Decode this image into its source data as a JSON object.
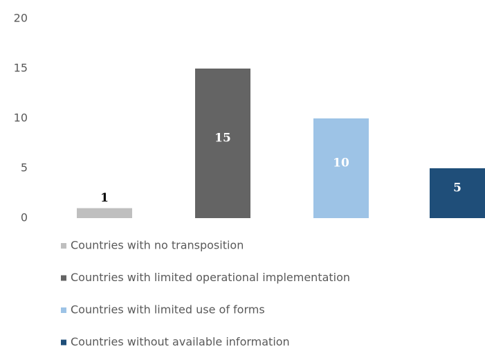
{
  "chart_data": {
    "type": "bar",
    "categories": [
      null
    ],
    "series": [
      {
        "name": "Countries with no transposition",
        "color": "#bfbfbf",
        "values": [
          1
        ]
      },
      {
        "name": "Countries with limited operational implementation",
        "color": "#646464",
        "values": [
          15
        ]
      },
      {
        "name": "Countries with limited use of forms",
        "color": "#9dc3e6",
        "values": [
          10
        ]
      },
      {
        "name": "Countries without available information",
        "color": "#1f4e79",
        "values": [
          5
        ]
      }
    ],
    "ylim": [
      0,
      20
    ],
    "yticks": [
      0,
      5,
      10,
      15,
      20
    ],
    "grid": false,
    "legend": "bottom"
  }
}
